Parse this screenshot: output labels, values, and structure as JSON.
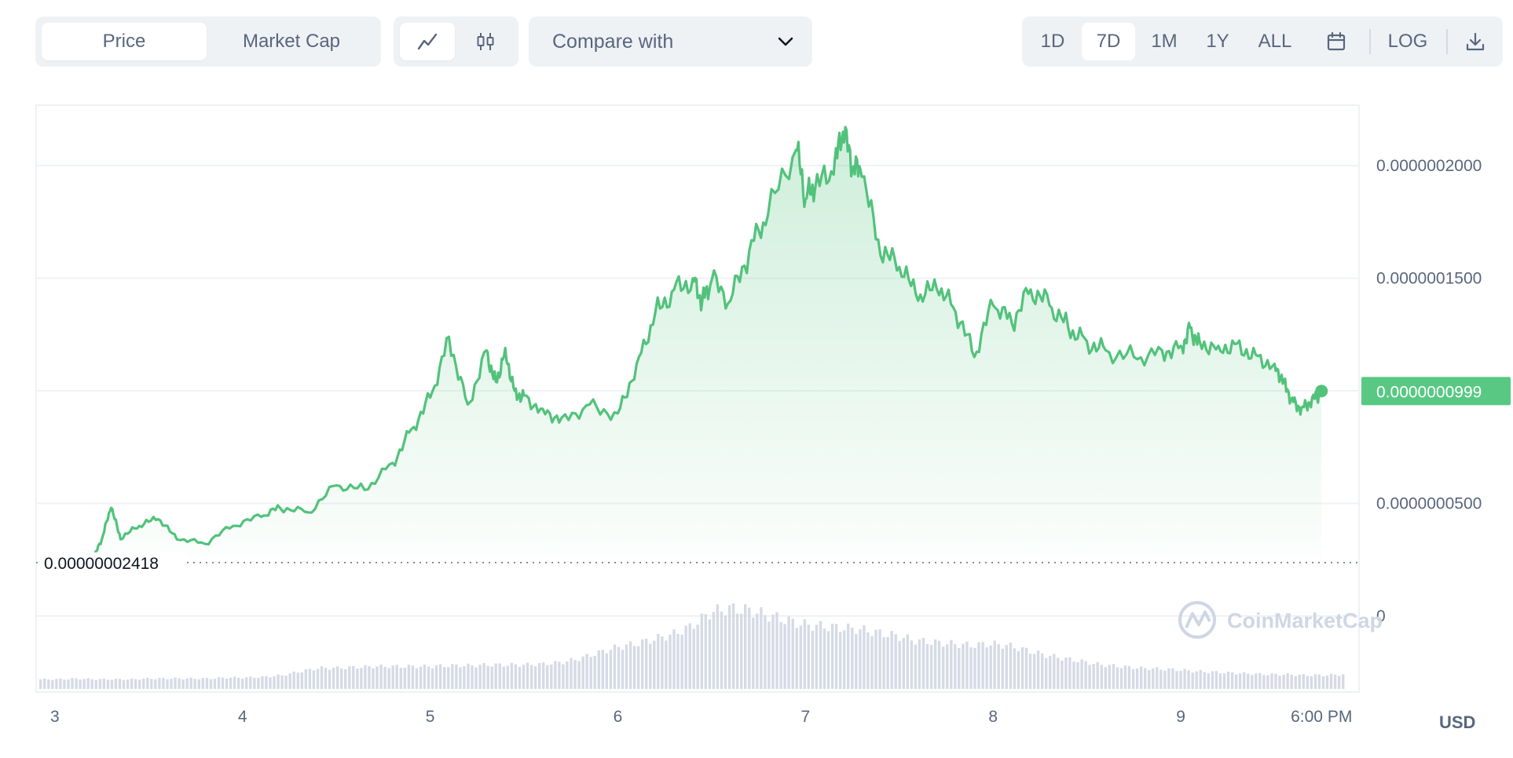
{
  "toolbar": {
    "price_label": "Price",
    "market_cap_label": "Market Cap",
    "compare_label": "Compare with",
    "ranges": [
      "1D",
      "7D",
      "1M",
      "1Y",
      "ALL"
    ],
    "active_range": "7D",
    "log_label": "LOG"
  },
  "currency": "USD",
  "watermark": "CoinMarketCap",
  "colors": {
    "line": "#52c27b",
    "badge": "#58c883",
    "volume": "#d6dae6"
  },
  "chart_data": {
    "type": "area",
    "title": "",
    "xlabel": "",
    "ylabel": "",
    "x_ticks": [
      "3",
      "4",
      "5",
      "6",
      "7",
      "8",
      "9",
      "6:00 PM"
    ],
    "y_ticks": [
      "0.0000002000",
      "0.0000001500",
      "0.0000000500",
      "0"
    ],
    "ylim": [
      0,
      2.3e-07
    ],
    "grid": true,
    "baseline_label": "0.00000002418",
    "current_value_label": "0.0000000999",
    "series": [
      {
        "x": [
          3.2,
          3.25,
          3.3,
          3.35,
          3.45,
          3.55,
          3.65,
          3.8,
          3.95,
          4.1,
          4.2,
          4.35,
          4.5,
          4.65,
          4.8,
          4.9,
          5.0,
          5.1,
          5.2,
          5.3,
          5.35,
          5.4,
          5.45,
          5.5,
          5.6,
          5.7,
          5.85,
          6.0,
          6.1,
          6.2,
          6.3,
          6.4,
          6.45,
          6.5,
          6.6,
          6.7,
          6.8,
          6.95,
          7.0,
          7.05,
          7.15,
          7.2,
          7.25,
          7.3,
          7.4,
          7.5,
          7.6,
          7.7,
          7.8,
          7.9,
          8.0,
          8.1,
          8.2,
          8.3,
          8.4,
          8.5,
          8.6,
          8.75,
          8.9,
          9.0,
          9.05,
          9.1,
          9.2,
          9.3,
          9.4,
          9.5,
          9.55,
          9.6,
          9.65,
          9.7,
          9.75
        ],
        "values": [
          2.42e-08,
          3.4e-08,
          4.8e-08,
          3.4e-08,
          4e-08,
          4.3e-08,
          3.4e-08,
          3.2e-08,
          4e-08,
          4.4e-08,
          4.8e-08,
          4.6e-08,
          5.8e-08,
          5.6e-08,
          6.8e-08,
          8.3e-08,
          9.7e-08,
          1.24e-07,
          9.4e-08,
          1.18e-07,
          1.04e-07,
          1.19e-07,
          1e-07,
          9.8e-08,
          9.2e-08,
          8.8e-08,
          9.4e-08,
          9e-08,
          1.12e-07,
          1.35e-07,
          1.45e-07,
          1.5e-07,
          1.4e-07,
          1.49e-07,
          1.4e-07,
          1.62e-07,
          1.78e-07,
          2.07e-07,
          1.85e-07,
          1.89e-07,
          1.96e-07,
          2.15e-07,
          1.98e-07,
          1.95e-07,
          1.6e-07,
          1.55e-07,
          1.4e-07,
          1.45e-07,
          1.35e-07,
          1.15e-07,
          1.38e-07,
          1.3e-07,
          1.45e-07,
          1.38e-07,
          1.28e-07,
          1.22e-07,
          1.18e-07,
          1.15e-07,
          1.18e-07,
          1.2e-07,
          1.28e-07,
          1.22e-07,
          1.2e-07,
          1.21e-07,
          1.16e-07,
          1.12e-07,
          1.05e-07,
          9.5e-08,
          9.3e-08,
          9.7e-08,
          9.99e-08
        ]
      }
    ],
    "volume_relative": [
      0.12,
      0.12,
      0.13,
      0.12,
      0.12,
      0.12,
      0.13,
      0.13,
      0.13,
      0.13,
      0.14,
      0.14,
      0.15,
      0.17,
      0.22,
      0.26,
      0.26,
      0.27,
      0.28,
      0.28,
      0.28,
      0.28,
      0.29,
      0.29,
      0.3,
      0.3,
      0.3,
      0.31,
      0.33,
      0.38,
      0.45,
      0.52,
      0.56,
      0.62,
      0.68,
      0.78,
      0.95,
      1.0,
      0.98,
      0.92,
      0.86,
      0.8,
      0.78,
      0.76,
      0.74,
      0.7,
      0.66,
      0.6,
      0.58,
      0.56,
      0.54,
      0.56,
      0.54,
      0.48,
      0.42,
      0.38,
      0.34,
      0.3,
      0.28,
      0.26,
      0.25,
      0.24,
      0.22,
      0.21,
      0.2,
      0.19,
      0.18,
      0.18,
      0.17,
      0.17,
      0.18
    ]
  }
}
